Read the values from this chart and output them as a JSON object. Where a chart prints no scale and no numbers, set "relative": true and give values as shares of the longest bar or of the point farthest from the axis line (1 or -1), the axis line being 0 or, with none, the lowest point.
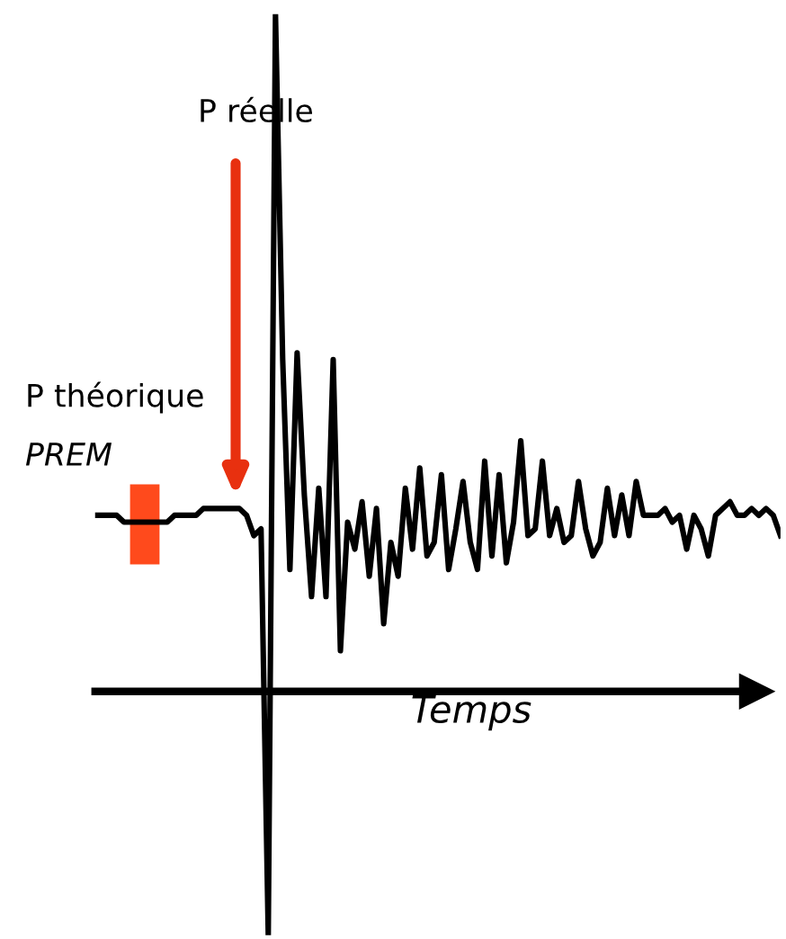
{
  "chart_data": {
    "type": "line",
    "relative": true,
    "marker": "none",
    "line_style": "solid",
    "xlabel": "Temps",
    "annotations": [
      "P réelle",
      "P théorique",
      "PREM"
    ],
    "categories": [
      null,
      null,
      null,
      null,
      null,
      null,
      null,
      null,
      null,
      null,
      null,
      null,
      null,
      null,
      null,
      null,
      null,
      null,
      null,
      null,
      null,
      null,
      null,
      null,
      null,
      null,
      null,
      null,
      null,
      null,
      null,
      null,
      null,
      null,
      null,
      null,
      null,
      null,
      null,
      null,
      null,
      null,
      null,
      null,
      null,
      null,
      null,
      null,
      null,
      null,
      null,
      null,
      null,
      null,
      null,
      null,
      null,
      null,
      null,
      null,
      null,
      null,
      null,
      null,
      null,
      null,
      null,
      null,
      null,
      null,
      null,
      null,
      null,
      null,
      null,
      null,
      null,
      null,
      null,
      null,
      null,
      null,
      null,
      null,
      null,
      null,
      null,
      null,
      null,
      null,
      null,
      null,
      null,
      null,
      null,
      null
    ],
    "series": [
      {
        "color": "#000000",
        "values": [
          0.26,
          0.26,
          0.26,
          0.26,
          0.25,
          0.25,
          0.25,
          0.25,
          0.25,
          0.25,
          0.25,
          0.26,
          0.26,
          0.26,
          0.26,
          0.27,
          0.27,
          0.27,
          0.27,
          0.27,
          0.27,
          0.26,
          0.23,
          0.24,
          -0.36,
          1,
          0.49,
          0.18,
          0.5,
          0.29,
          0.14,
          0.3,
          0.14,
          0.49,
          0.06,
          0.25,
          0.21,
          0.28,
          0.17,
          0.27,
          0.1,
          0.22,
          0.17,
          0.3,
          0.21,
          0.33,
          0.2,
          0.22,
          0.32,
          0.18,
          0.24,
          0.31,
          0.22,
          0.18,
          0.34,
          0.2,
          0.32,
          0.19,
          0.25,
          0.37,
          0.23,
          0.24,
          0.34,
          0.23,
          0.27,
          0.22,
          0.23,
          0.31,
          0.24,
          0.2,
          0.22,
          0.3,
          0.23,
          0.29,
          0.23,
          0.31,
          0.26,
          0.26,
          0.26,
          0.27,
          0.25,
          0.26,
          0.21,
          0.26,
          0.24,
          0.2,
          0.26,
          0.27,
          0.28,
          0.26,
          0.26,
          0.27,
          0.26,
          0.27,
          0.26,
          0.23
        ]
      }
    ]
  }
}
